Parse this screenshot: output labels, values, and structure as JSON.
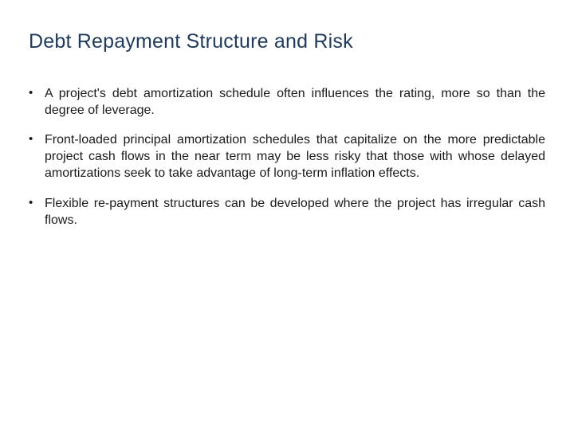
{
  "slide": {
    "title": "Debt Repayment Structure and Risk",
    "title_color": "#1f3a5f",
    "title_fontsize": 25,
    "body_color": "#1a1a1a",
    "body_fontsize": 16,
    "background_color": "#ffffff",
    "bullets": [
      {
        "marker": "•",
        "text": "A project's debt amortization schedule often influences the rating, more so than the degree of leverage."
      },
      {
        "marker": "•",
        "text": "Front-loaded principal amortization schedules that capitalize on the more predictable project cash flows in the near term may be less risky that those with whose delayed amortizations seek to take advantage of long-term inflation effects."
      },
      {
        "marker": "•",
        "text": "Flexible re-payment structures can be developed where the project has irregular cash flows."
      }
    ]
  }
}
